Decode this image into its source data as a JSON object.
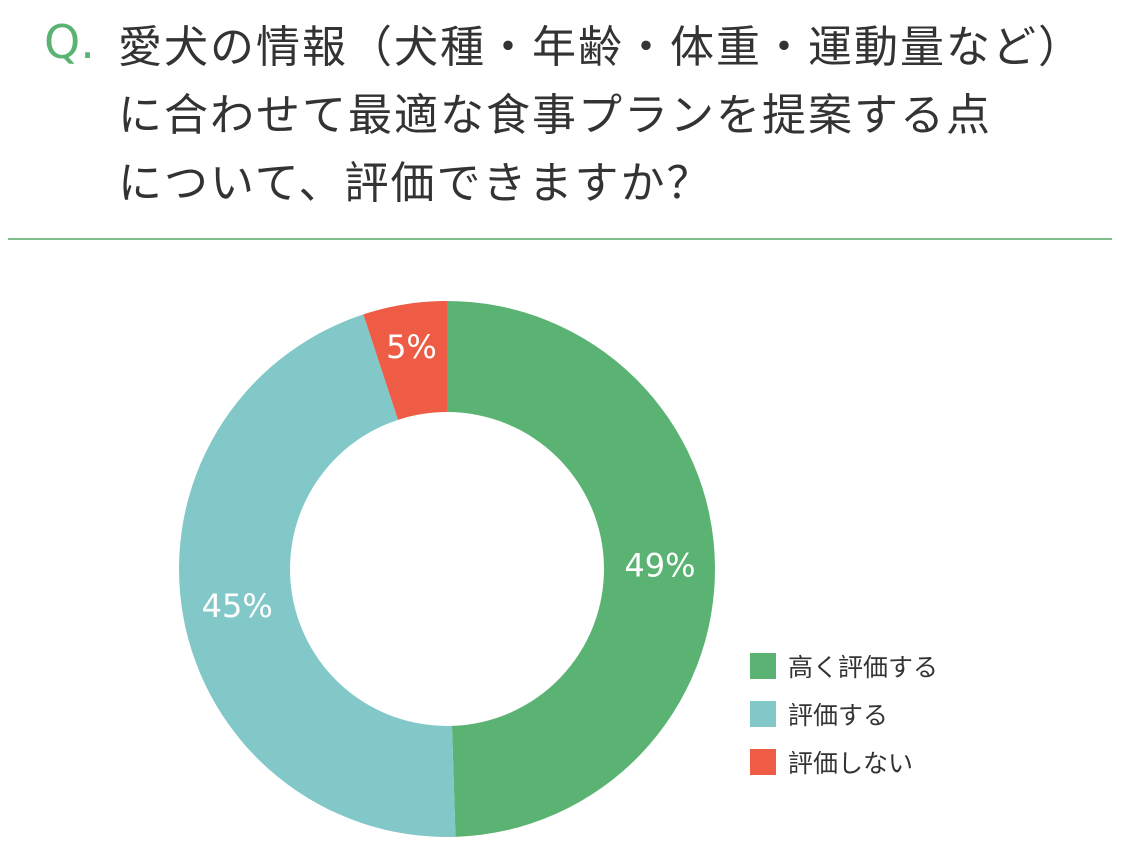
{
  "question": {
    "mark": "Q.",
    "lines": [
      "愛犬の情報（犬種・年齢・体重・運動量など）",
      "に合わせて最適な食事プランを提案する点",
      "について、評価できますか？"
    ]
  },
  "colors": {
    "accent": "#5bb373",
    "divider": "#7cc08d",
    "high": "#5bb373",
    "mid": "#82c8c9",
    "low": "#ee5c45"
  },
  "chart_data": {
    "type": "pie",
    "donut": true,
    "title": "",
    "slices": [
      {
        "label": "高く評価する",
        "value": 49,
        "display": "49%",
        "color": "#5bb373"
      },
      {
        "label": "評価する",
        "value": 45,
        "display": "45%",
        "color": "#82c8c9"
      },
      {
        "label": "評価しない",
        "value": 5,
        "display": "5%",
        "color": "#ee5c45"
      }
    ],
    "legend": {
      "placement": "bottom-right",
      "entries": [
        "高く評価する",
        "評価する",
        "評価しない"
      ]
    }
  }
}
